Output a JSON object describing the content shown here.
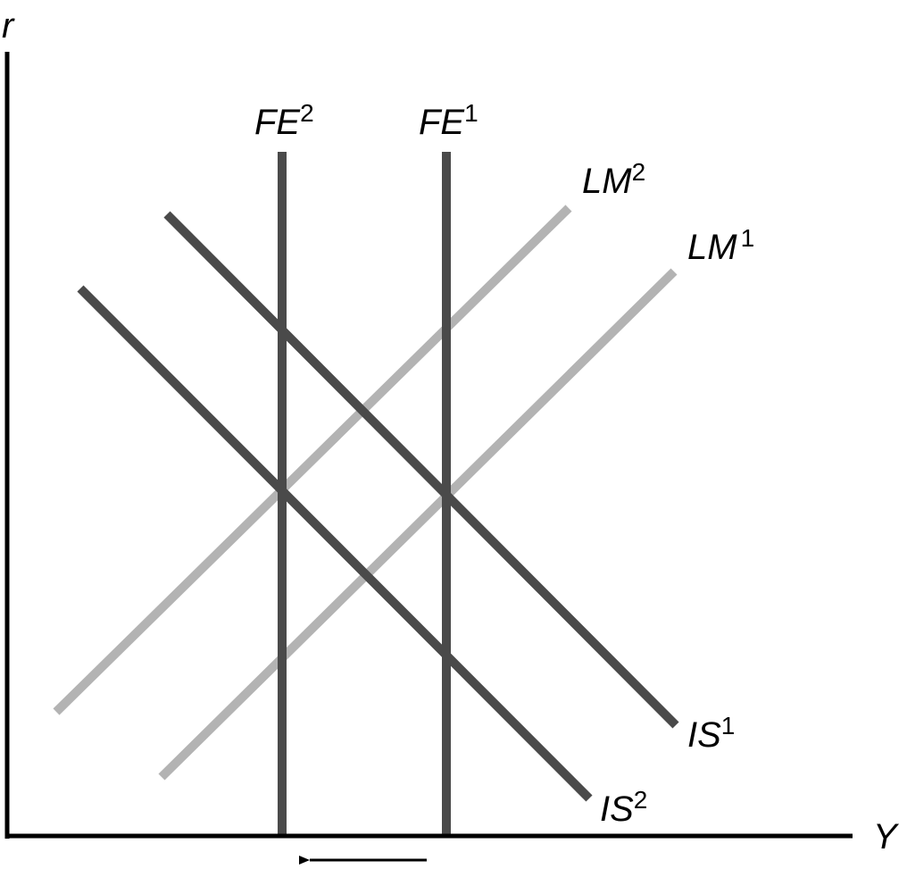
{
  "axes": {
    "y_label": "r",
    "x_label": "Y"
  },
  "curves": [
    {
      "base": "FE",
      "sup": "2"
    },
    {
      "base": "FE",
      "sup": "1"
    },
    {
      "base": "LM",
      "sup": "2"
    },
    {
      "base": "LM",
      "sup": "1"
    },
    {
      "base": "IS",
      "sup": "1"
    },
    {
      "base": "IS",
      "sup": "2"
    }
  ]
}
